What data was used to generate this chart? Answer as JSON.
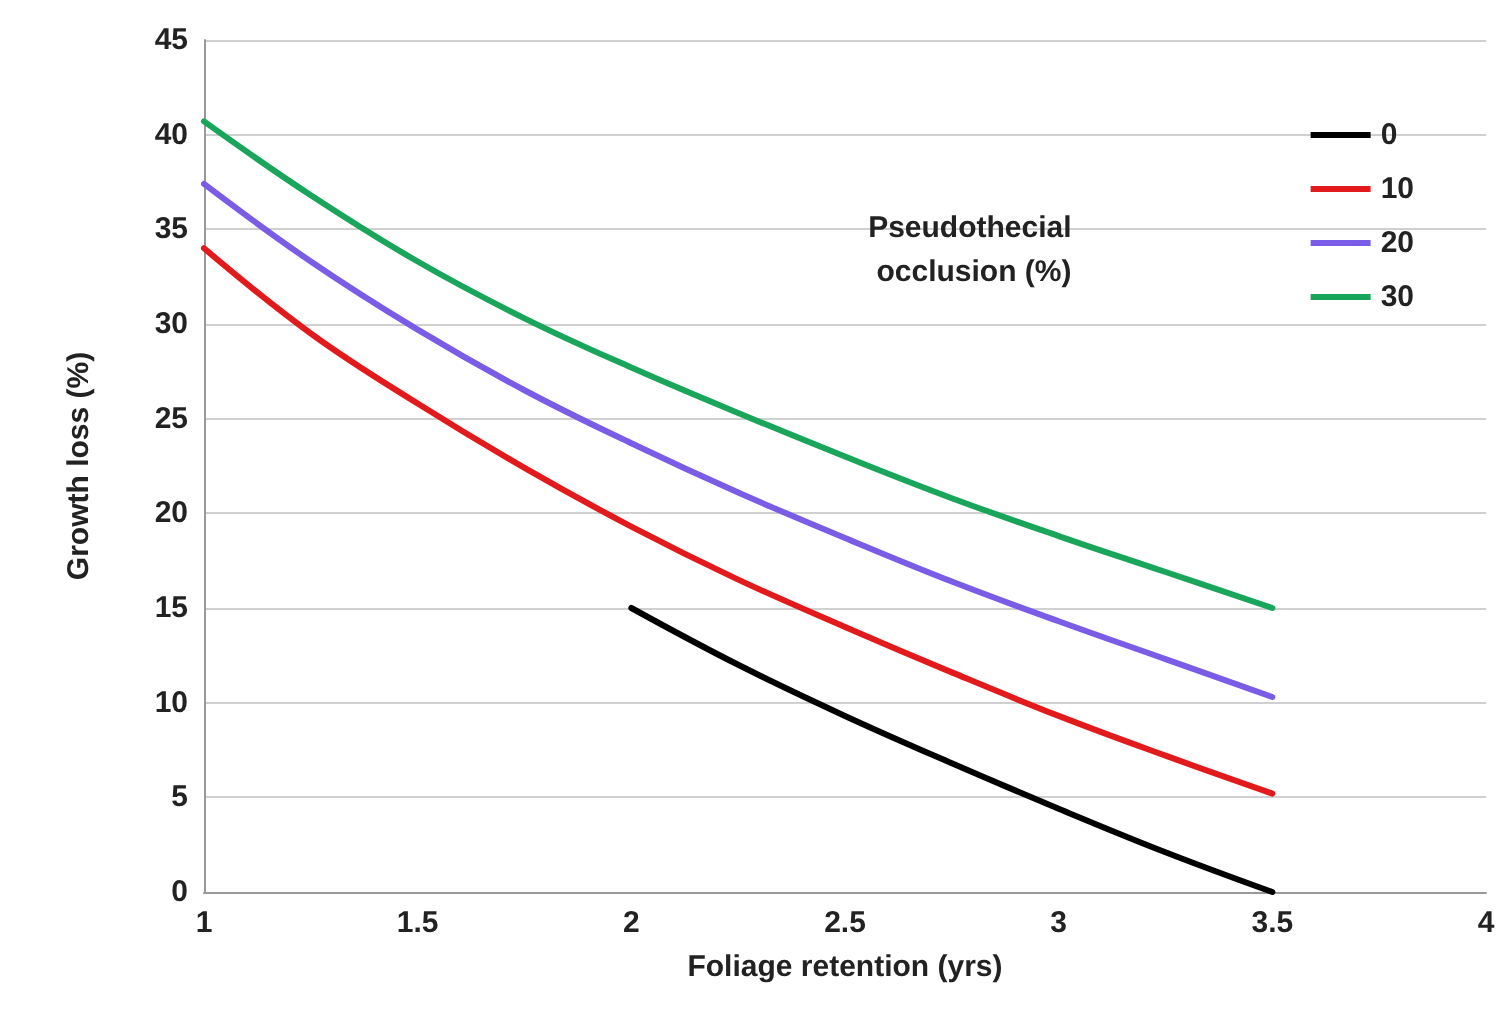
{
  "chart_data": {
    "type": "line",
    "xlabel": "Foliage retention (yrs)",
    "ylabel": "Growth loss (%)",
    "legend_title": "Pseudothecial occlusion (%)",
    "xlim": [
      1,
      4
    ],
    "xticks": [
      1,
      1.5,
      2,
      2.5,
      3,
      3.5,
      4
    ],
    "ylim": [
      0,
      45
    ],
    "yticks": [
      0,
      5,
      10,
      15,
      20,
      25,
      30,
      35,
      40,
      45
    ],
    "grid": "y",
    "legend": "top right",
    "marker": "none",
    "line_style": "solid",
    "series": [
      {
        "name": "0",
        "color": "#000000",
        "x": [
          2,
          2.25,
          2.5,
          2.75,
          3,
          3.25,
          3.5
        ],
        "values": [
          15,
          12,
          9.3,
          6.8,
          4.4,
          2.1,
          0
        ]
      },
      {
        "name": "10",
        "color": "#e31a1c",
        "x": [
          1,
          1.25,
          1.5,
          1.75,
          2,
          2.25,
          2.5,
          2.75,
          3,
          3.25,
          3.5
        ],
        "values": [
          34,
          29.5,
          25.8,
          22.4,
          19.3,
          16.5,
          14,
          11.6,
          9.3,
          7.2,
          5.2
        ]
      },
      {
        "name": "20",
        "color": "#7b5ce6",
        "x": [
          1,
          1.25,
          1.5,
          1.75,
          2,
          2.25,
          2.5,
          2.75,
          3,
          3.25,
          3.5
        ],
        "values": [
          37.4,
          33.3,
          29.7,
          26.5,
          23.7,
          21.1,
          18.7,
          16.4,
          14.3,
          12.3,
          10.3
        ]
      },
      {
        "name": "30",
        "color": "#1aa65a",
        "x": [
          1,
          1.25,
          1.5,
          1.75,
          2,
          2.25,
          2.5,
          2.75,
          3,
          3.25,
          3.5
        ],
        "values": [
          40.7,
          36.8,
          33.3,
          30.3,
          27.7,
          25.3,
          23,
          20.8,
          18.8,
          16.9,
          15
        ]
      }
    ]
  }
}
